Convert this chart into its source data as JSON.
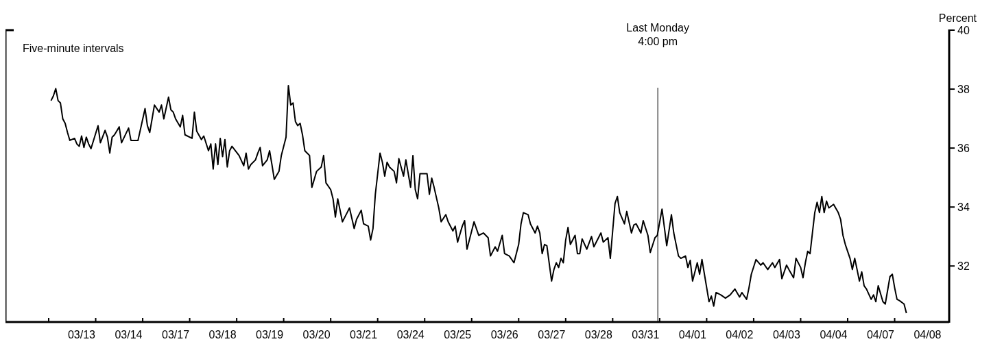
{
  "chart_data": {
    "type": "line",
    "ylabel": "Percent",
    "annotations": [
      "Five-minute intervals",
      "Last Monday\n4:00 pm"
    ],
    "ylim": [
      30.1,
      40
    ],
    "yticks": [
      32,
      34,
      36,
      38,
      40
    ],
    "categories": [
      null,
      null,
      null,
      null,
      null,
      null,
      null,
      null,
      null,
      null,
      null,
      null,
      null,
      null,
      "03/13",
      null,
      null,
      null,
      null,
      null,
      null,
      null,
      null,
      null,
      null,
      null,
      null,
      null,
      null,
      null,
      null,
      null,
      null,
      null,
      "03/14",
      null,
      null,
      null,
      null,
      null,
      null,
      null,
      null,
      null,
      null,
      null,
      null,
      null,
      null,
      null,
      null,
      null,
      null,
      null,
      "03/17",
      null,
      null,
      null,
      null,
      null,
      null,
      null,
      null,
      null,
      null,
      null,
      null,
      null,
      null,
      null,
      null,
      null,
      null,
      null,
      "03/18",
      null,
      null,
      null,
      null,
      null,
      null,
      null,
      null,
      null,
      null,
      null,
      null,
      null,
      null,
      null,
      null,
      null,
      null,
      null,
      "03/19",
      null,
      null,
      null,
      null,
      null,
      null,
      null,
      null,
      null,
      null,
      null,
      null,
      null,
      null,
      null,
      null,
      null,
      null,
      null,
      "03/20",
      null,
      null,
      null,
      null,
      null,
      null,
      null,
      null,
      null,
      null,
      null,
      null,
      null,
      null,
      null,
      null,
      null,
      null,
      null,
      "03/21",
      null,
      null,
      null,
      null,
      null,
      null,
      null,
      null,
      null,
      null,
      null,
      null,
      null,
      null,
      null,
      null,
      null,
      null,
      null,
      "03/24",
      null,
      null,
      null,
      null,
      null,
      null,
      null,
      null,
      null,
      null,
      null,
      null,
      null,
      null,
      null,
      null,
      null,
      null,
      null,
      "03/25",
      null,
      null,
      null,
      null,
      null,
      null,
      null,
      null,
      null,
      null,
      null,
      null,
      null,
      null,
      null,
      null,
      null,
      null,
      null,
      "03/26",
      null,
      null,
      null,
      null,
      null,
      null,
      null,
      null,
      null,
      null,
      null,
      null,
      null,
      null,
      null,
      null,
      null,
      null,
      null,
      "03/27",
      null,
      null,
      null,
      null,
      null,
      null,
      null,
      null,
      null,
      null,
      null,
      null,
      null,
      null,
      null,
      null,
      null,
      null,
      null,
      "03/28",
      null,
      null,
      null,
      null,
      null,
      null,
      null,
      null,
      null,
      null,
      null,
      null,
      null,
      null,
      null,
      null,
      null,
      null,
      null,
      "03/31",
      null,
      null,
      null,
      null,
      null,
      null,
      null,
      null,
      null,
      null,
      null,
      null,
      null,
      null,
      null,
      null,
      null,
      null,
      null,
      "04/01",
      null,
      null,
      null,
      null,
      null,
      null,
      null,
      null,
      null,
      null,
      null,
      null,
      null,
      null,
      null,
      null,
      null,
      null,
      null,
      "04/02",
      null,
      null,
      null,
      null,
      null,
      null,
      null,
      null,
      null,
      null,
      null,
      null,
      null,
      null,
      null,
      null,
      null,
      null,
      null,
      "04/03",
      null,
      null,
      null,
      null,
      null,
      null,
      null,
      null,
      null,
      null,
      null,
      null,
      null,
      null,
      null,
      null,
      null,
      null,
      null,
      "04/04",
      null,
      null,
      null,
      null,
      null,
      null,
      null,
      null,
      null,
      null,
      null,
      null,
      null,
      null,
      null,
      null,
      null,
      null,
      null,
      "04/07",
      null,
      null,
      null,
      null,
      null,
      null,
      null,
      null,
      null,
      null,
      null,
      null,
      null,
      null,
      null,
      null,
      null,
      null,
      null,
      "04/08"
    ],
    "series": [
      {
        "color": "#000000",
        "values": [
          null,
          37.61,
          37.77,
          38.02,
          37.61,
          37.53,
          36.99,
          36.84,
          36.53,
          36.26,
          null,
          36.33,
          36.14,
          36.06,
          36.41,
          36.02,
          36.37,
          36.14,
          35.98,
          null,
          null,
          36.76,
          36.18,
          null,
          36.6,
          36.37,
          35.83,
          36.37,
          36.45,
          null,
          36.72,
          36.18,
          null,
          null,
          36.68,
          36.26,
          null,
          null,
          36.26,
          null,
          null,
          37.34,
          36.76,
          36.53,
          36.99,
          37.46,
          null,
          37.22,
          37.46,
          36.99,
          null,
          37.73,
          37.3,
          37.22,
          36.99,
          null,
          36.72,
          37.11,
          36.45,
          null,
          null,
          36.33,
          37.22,
          36.57,
          null,
          36.29,
          36.41,
          null,
          35.91,
          36.14,
          35.29,
          36.14,
          35.44,
          36.33,
          35.71,
          36.29,
          35.36,
          35.91,
          36.06,
          null,
          null,
          35.75,
          null,
          35.4,
          35.83,
          35.29,
          35.44,
          null,
          35.6,
          35.83,
          36.02,
          35.4,
          null,
          35.6,
          35.91,
          35.44,
          34.94,
          null,
          35.21,
          35.75,
          null,
          36.37,
          38.12,
          37.46,
          37.53,
          36.9,
          36.76,
          36.84,
          36.45,
          35.91,
          35.83,
          35.75,
          34.67,
          null,
          35.21,
          null,
          35.36,
          35.75,
          34.82,
          null,
          34.59,
          34.28,
          33.66,
          34.28,
          null,
          33.5,
          null,
          33.81,
          33.97,
          null,
          33.27,
          33.58,
          null,
          33.89,
          33.43,
          null,
          33.35,
          32.88,
          33.27,
          34.43,
          null,
          35.83,
          35.52,
          35.05,
          35.52,
          35.36,
          null,
          35.21,
          34.82,
          35.64,
          null,
          35.05,
          35.6,
          null,
          34.67,
          35.75,
          34.59,
          34.28,
          35.13,
          null,
          null,
          35.13,
          34.43,
          34.98,
          34.67,
          null,
          33.97,
          33.5,
          null,
          33.74,
          33.5,
          null,
          33.19,
          33.35,
          32.81,
          null,
          33.35,
          33.54,
          32.57,
          null,
          null,
          33.5,
          null,
          33.04,
          null,
          33.12,
          null,
          32.96,
          32.34,
          null,
          32.65,
          32.5,
          null,
          33.04,
          32.42,
          null,
          32.34,
          null,
          32.11,
          null,
          32.73,
          33.43,
          33.81,
          null,
          33.74,
          33.43,
          null,
          33.12,
          33.35,
          33.12,
          32.42,
          32.73,
          32.69,
          null,
          31.49,
          31.88,
          32.11,
          31.95,
          32.26,
          32.11,
          32.88,
          33.31,
          32.73,
          null,
          33.04,
          32.42,
          32.42,
          32.92,
          null,
          32.57,
          null,
          33.0,
          32.65,
          null,
          null,
          33.12,
          32.81,
          null,
          32.96,
          32.26,
          33.19,
          34.12,
          34.36,
          33.81,
          null,
          33.43,
          33.85,
          null,
          33.12,
          33.39,
          33.43,
          null,
          33.12,
          33.54,
          null,
          33.04,
          32.46,
          null,
          32.96,
          33.04,
          null,
          33.93,
          null,
          32.69,
          null,
          33.74,
          33.12,
          32.73,
          32.34,
          32.26,
          null,
          32.34,
          31.95,
          32.19,
          31.49,
          null,
          32.11,
          31.72,
          32.22,
          null,
          null,
          30.79,
          30.98,
          30.64,
          31.1,
          null,
          31.02,
          null,
          30.91,
          null,
          31.02,
          null,
          31.22,
          null,
          30.95,
          31.1,
          null,
          30.87,
          31.26,
          31.72,
          null,
          32.22,
          null,
          32.03,
          32.11,
          null,
          31.88,
          null,
          32.11,
          31.95,
          null,
          32.22,
          31.57,
          null,
          32.03,
          31.88,
          null,
          31.6,
          32.26,
          null,
          31.95,
          31.6,
          32.11,
          32.5,
          32.42,
          33.12,
          33.81,
          34.16,
          33.81,
          34.36,
          33.81,
          34.2,
          33.97,
          null,
          34.09,
          null,
          33.81,
          33.58,
          33.04,
          32.73,
          null,
          32.26,
          31.88,
          32.26,
          31.88,
          31.49,
          31.8,
          31.33,
          31.22,
          null,
          30.87,
          31.02,
          30.79,
          31.33,
          null,
          30.79,
          30.71,
          null,
          31.64,
          31.72,
          31.26,
          30.87,
          30.83,
          null,
          30.71,
          30.4,
          null,
          null,
          null,
          null,
          null,
          null,
          null,
          null,
          null
        ]
      }
    ]
  }
}
